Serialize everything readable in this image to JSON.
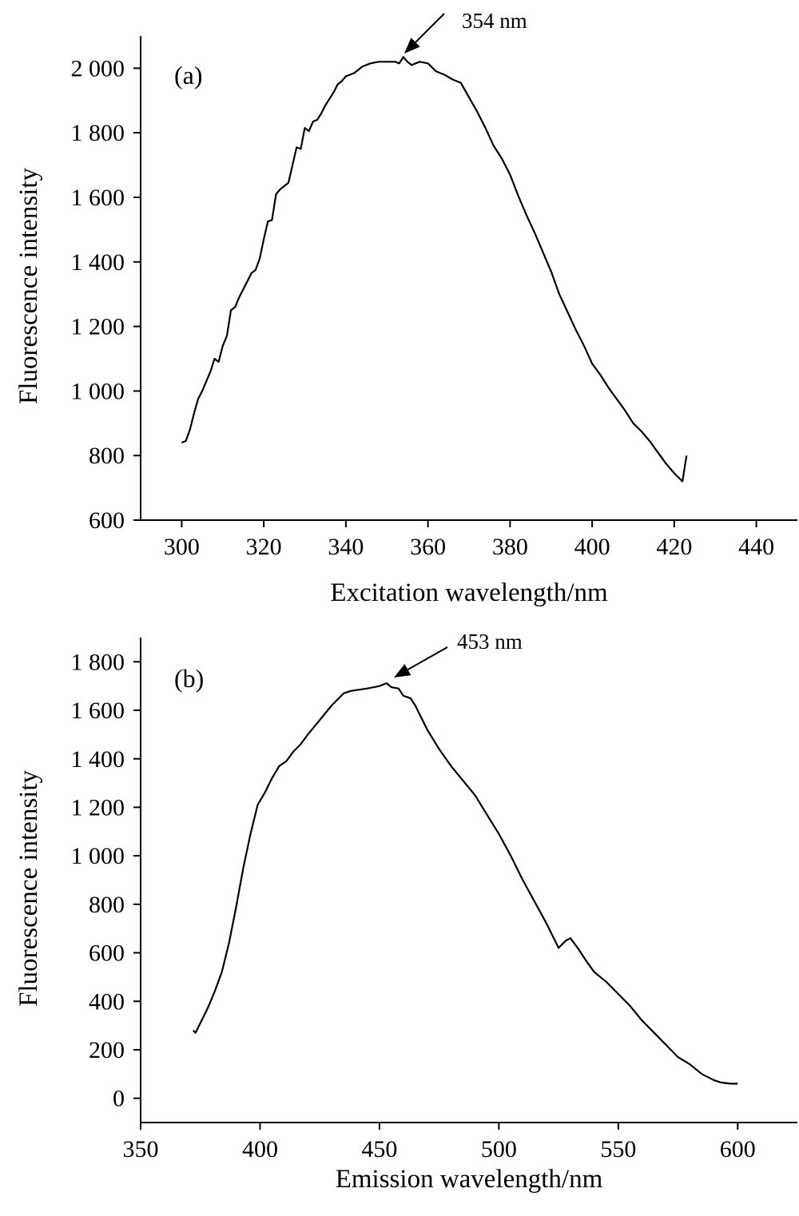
{
  "chart_data": [
    {
      "type": "line",
      "panel_label": "(a)",
      "xlabel": "Excitation wavelength/nm",
      "ylabel": "Fluorescence intensity",
      "xlim": [
        290,
        450
      ],
      "ylim": [
        600,
        2100
      ],
      "xticks": [
        300,
        320,
        340,
        360,
        380,
        400,
        420,
        440
      ],
      "xtick_labels": [
        "300",
        "320",
        "340",
        "360",
        "380",
        "400",
        "420",
        "440"
      ],
      "yticks": [
        600,
        800,
        1000,
        1200,
        1400,
        1600,
        1800,
        2000
      ],
      "ytick_labels": [
        "600",
        "800",
        "1 000",
        "1 200",
        "1 400",
        "1 600",
        "1 800",
        "2 000"
      ],
      "grid": false,
      "annotation": {
        "text": "354 nm",
        "x": 354,
        "y": 2030
      },
      "series": [
        {
          "x": [
            300,
            301,
            302,
            303,
            304,
            305,
            306,
            307,
            308,
            309,
            310,
            311,
            312,
            313,
            314,
            315,
            316,
            317,
            318,
            319,
            320,
            321,
            322,
            323,
            324,
            325,
            326,
            327,
            328,
            329,
            330,
            331,
            332,
            333,
            334,
            335,
            336,
            337,
            338,
            339,
            340,
            342,
            344,
            346,
            348,
            350,
            352,
            353,
            354,
            355,
            356,
            358,
            360,
            362,
            364,
            366,
            368,
            370,
            372,
            374,
            376,
            378,
            380,
            382,
            384,
            386,
            388,
            390,
            392,
            394,
            396,
            398,
            400,
            402,
            404,
            406,
            408,
            410,
            412,
            414,
            416,
            418,
            420,
            422,
            423
          ],
          "y": [
            840,
            845,
            880,
            930,
            975,
            1000,
            1030,
            1060,
            1100,
            1090,
            1140,
            1170,
            1250,
            1260,
            1290,
            1315,
            1340,
            1365,
            1375,
            1410,
            1470,
            1525,
            1530,
            1610,
            1625,
            1635,
            1645,
            1700,
            1755,
            1750,
            1815,
            1805,
            1835,
            1840,
            1860,
            1885,
            1905,
            1925,
            1950,
            1960,
            1975,
            1985,
            2005,
            2015,
            2020,
            2020,
            2020,
            2015,
            2035,
            2020,
            2010,
            2020,
            2015,
            1990,
            1980,
            1965,
            1955,
            1910,
            1865,
            1815,
            1760,
            1720,
            1670,
            1605,
            1545,
            1490,
            1430,
            1370,
            1300,
            1245,
            1190,
            1140,
            1085,
            1050,
            1010,
            975,
            940,
            900,
            875,
            845,
            810,
            775,
            745,
            720,
            800
          ]
        }
      ]
    },
    {
      "type": "line",
      "panel_label": "(b)",
      "xlabel": "Emission wavelength/nm",
      "ylabel": "Fluorescence intensity",
      "xlim": [
        350,
        625
      ],
      "ylim": [
        -100,
        1900
      ],
      "xticks": [
        350,
        400,
        450,
        500,
        550,
        600
      ],
      "xtick_labels": [
        "350",
        "400",
        "450",
        "500",
        "550",
        "600"
      ],
      "yticks": [
        0,
        200,
        400,
        600,
        800,
        1000,
        1200,
        1400,
        1600,
        1800
      ],
      "ytick_labels": [
        "0",
        "200",
        "400",
        "600",
        "800",
        "1 000",
        "1 200",
        "1 400",
        "1 600",
        "1 800"
      ],
      "grid": false,
      "annotation": {
        "text": "453 nm",
        "x": 453,
        "y": 1710
      },
      "series": [
        {
          "x": [
            372,
            373,
            375,
            378,
            381,
            384,
            387,
            390,
            393,
            396,
            399,
            402,
            405,
            408,
            411,
            414,
            417,
            420,
            425,
            430,
            435,
            438,
            445,
            450,
            453,
            455,
            458,
            460,
            463,
            465,
            470,
            475,
            480,
            485,
            490,
            495,
            500,
            505,
            510,
            515,
            520,
            525,
            528,
            530,
            533,
            537,
            540,
            545,
            550,
            555,
            560,
            565,
            570,
            575,
            580,
            585,
            590,
            593,
            597,
            600
          ],
          "y": [
            280,
            270,
            310,
            370,
            440,
            520,
            640,
            790,
            950,
            1090,
            1210,
            1260,
            1320,
            1370,
            1390,
            1430,
            1460,
            1500,
            1560,
            1620,
            1670,
            1680,
            1690,
            1700,
            1712,
            1695,
            1690,
            1660,
            1650,
            1620,
            1520,
            1440,
            1370,
            1310,
            1250,
            1170,
            1090,
            1000,
            900,
            810,
            720,
            620,
            650,
            660,
            620,
            560,
            520,
            480,
            430,
            380,
            320,
            270,
            220,
            170,
            140,
            100,
            75,
            65,
            60,
            60
          ]
        }
      ]
    }
  ]
}
